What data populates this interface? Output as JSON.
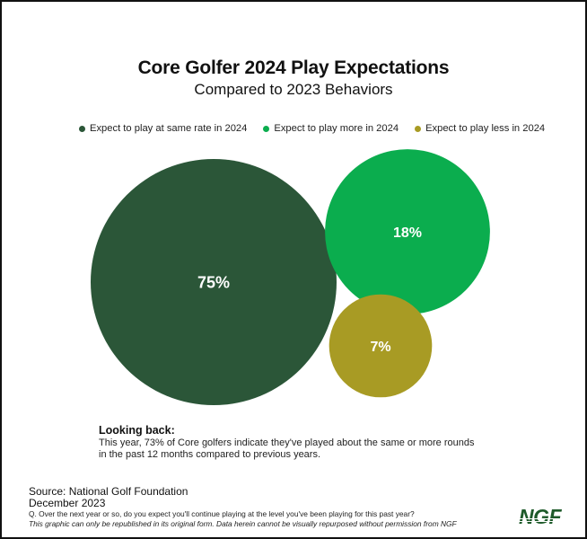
{
  "chart_data": {
    "type": "bubble",
    "title": "Core Golfer 2024 Play Expectations",
    "subtitle": "Compared to 2023 Behaviors",
    "legend_position": "top",
    "series": [
      {
        "name": "Expect to play at same rate in 2024",
        "value": 75,
        "label": "75%",
        "color": "#2b5638"
      },
      {
        "name": "Expect to play more in 2024",
        "value": 18,
        "label": "18%",
        "color": "#0bad4e"
      },
      {
        "name": "Expect to play less in 2024",
        "value": 7,
        "label": "7%",
        "color": "#a89b24"
      }
    ],
    "unit": "%"
  },
  "note": {
    "heading": "Looking back:",
    "body": "This year, 73% of Core golfers indicate they've played about the same or more rounds in the past 12 months compared to previous years."
  },
  "footer": {
    "source": "Source: National Golf Foundation",
    "date": "December 2023",
    "question": "Q. Over the next year or so, do you expect you'll continue playing at the level you've been playing for this past year?",
    "disclaimer": "This graphic can only be republished in its original form. Data herein cannot be visually repurposed without permission from NGF",
    "logo": "NGF"
  }
}
